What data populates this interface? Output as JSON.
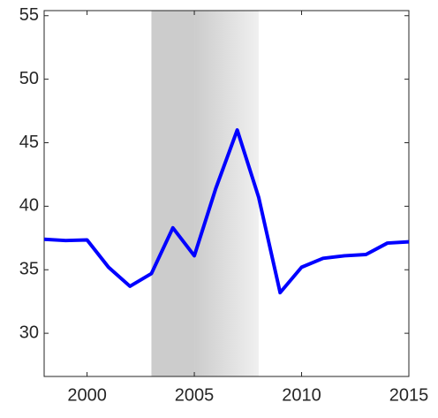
{
  "chart_data": {
    "type": "line",
    "x": [
      1998,
      1999,
      2000,
      2001,
      2002,
      2003,
      2004,
      2005,
      2006,
      2007,
      2008,
      2009,
      2010,
      2011,
      2012,
      2013,
      2014,
      2015
    ],
    "series": [
      {
        "color": "#0000ff",
        "values": [
          37.4,
          37.3,
          37.35,
          35.2,
          33.7,
          34.7,
          38.3,
          36.1,
          41.4,
          46.0,
          40.7,
          33.2,
          35.2,
          35.9,
          36.1,
          36.2,
          37.1,
          37.2
        ]
      }
    ],
    "xlim": [
      1998,
      2015
    ],
    "xticks": [
      2000,
      2005,
      2010,
      2015
    ],
    "ylim": [
      26.6,
      55.4
    ],
    "yticks": [
      30,
      35,
      40,
      45,
      50,
      55
    ],
    "shaded_region": [
      2003,
      2005,
      2008
    ],
    "grid": false
  }
}
